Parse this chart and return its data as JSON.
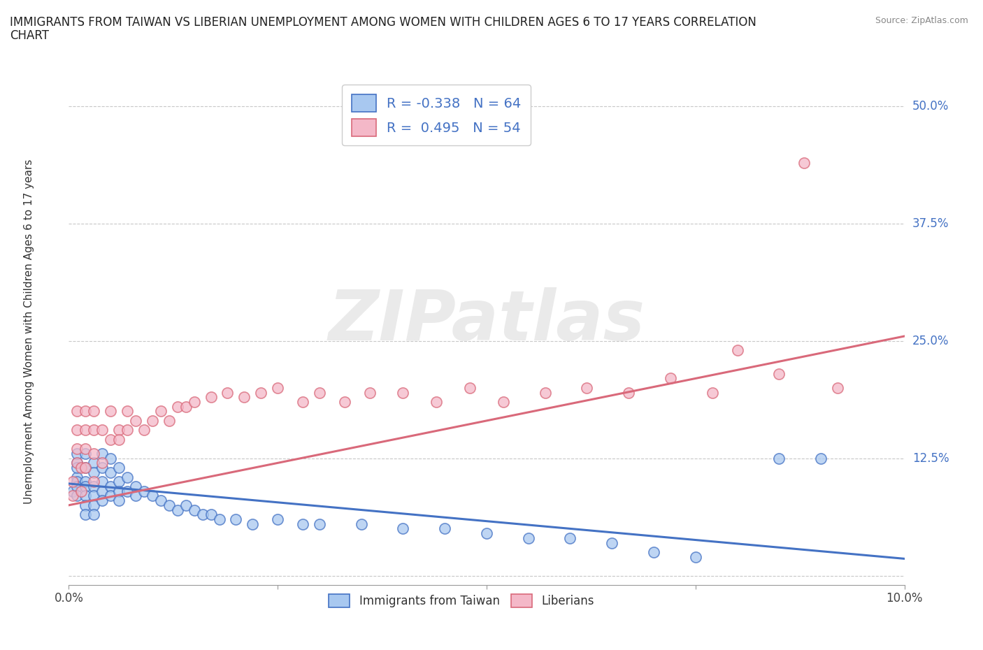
{
  "title": "IMMIGRANTS FROM TAIWAN VS LIBERIAN UNEMPLOYMENT AMONG WOMEN WITH CHILDREN AGES 6 TO 17 YEARS CORRELATION\nCHART",
  "source": "Source: ZipAtlas.com",
  "ylabel_text": "Unemployment Among Women with Children Ages 6 to 17 years",
  "taiwan_color": "#a8c8f0",
  "liberia_color": "#f4b8c8",
  "taiwan_line_color": "#4472c4",
  "liberia_line_color": "#d9697a",
  "background_color": "#ffffff",
  "grid_color": "#c8c8c8",
  "legend_r_taiwan": "-0.338",
  "legend_n_taiwan": "64",
  "legend_r_liberia": "0.495",
  "legend_n_liberia": "54",
  "watermark": "ZIPatlas",
  "xlim": [
    0.0,
    0.1
  ],
  "ylim": [
    -0.01,
    0.53
  ],
  "taiwan_scatter": [
    [
      0.0005,
      0.09
    ],
    [
      0.001,
      0.105
    ],
    [
      0.001,
      0.12
    ],
    [
      0.001,
      0.13
    ],
    [
      0.001,
      0.115
    ],
    [
      0.001,
      0.1
    ],
    [
      0.001,
      0.095
    ],
    [
      0.001,
      0.085
    ],
    [
      0.002,
      0.1
    ],
    [
      0.002,
      0.115
    ],
    [
      0.002,
      0.13
    ],
    [
      0.002,
      0.095
    ],
    [
      0.002,
      0.085
    ],
    [
      0.002,
      0.075
    ],
    [
      0.002,
      0.065
    ],
    [
      0.003,
      0.12
    ],
    [
      0.003,
      0.11
    ],
    [
      0.003,
      0.095
    ],
    [
      0.003,
      0.085
    ],
    [
      0.003,
      0.075
    ],
    [
      0.003,
      0.065
    ],
    [
      0.004,
      0.13
    ],
    [
      0.004,
      0.115
    ],
    [
      0.004,
      0.1
    ],
    [
      0.004,
      0.09
    ],
    [
      0.004,
      0.08
    ],
    [
      0.005,
      0.125
    ],
    [
      0.005,
      0.11
    ],
    [
      0.005,
      0.095
    ],
    [
      0.005,
      0.085
    ],
    [
      0.006,
      0.115
    ],
    [
      0.006,
      0.1
    ],
    [
      0.006,
      0.09
    ],
    [
      0.006,
      0.08
    ],
    [
      0.007,
      0.105
    ],
    [
      0.007,
      0.09
    ],
    [
      0.008,
      0.095
    ],
    [
      0.008,
      0.085
    ],
    [
      0.009,
      0.09
    ],
    [
      0.01,
      0.085
    ],
    [
      0.011,
      0.08
    ],
    [
      0.012,
      0.075
    ],
    [
      0.013,
      0.07
    ],
    [
      0.014,
      0.075
    ],
    [
      0.015,
      0.07
    ],
    [
      0.016,
      0.065
    ],
    [
      0.017,
      0.065
    ],
    [
      0.018,
      0.06
    ],
    [
      0.02,
      0.06
    ],
    [
      0.022,
      0.055
    ],
    [
      0.025,
      0.06
    ],
    [
      0.028,
      0.055
    ],
    [
      0.03,
      0.055
    ],
    [
      0.035,
      0.055
    ],
    [
      0.04,
      0.05
    ],
    [
      0.045,
      0.05
    ],
    [
      0.05,
      0.045
    ],
    [
      0.055,
      0.04
    ],
    [
      0.06,
      0.04
    ],
    [
      0.065,
      0.035
    ],
    [
      0.07,
      0.025
    ],
    [
      0.075,
      0.02
    ],
    [
      0.085,
      0.125
    ],
    [
      0.09,
      0.125
    ]
  ],
  "liberia_scatter": [
    [
      0.0005,
      0.085
    ],
    [
      0.0005,
      0.1
    ],
    [
      0.001,
      0.12
    ],
    [
      0.001,
      0.135
    ],
    [
      0.001,
      0.155
    ],
    [
      0.001,
      0.175
    ],
    [
      0.0015,
      0.09
    ],
    [
      0.0015,
      0.115
    ],
    [
      0.002,
      0.115
    ],
    [
      0.002,
      0.135
    ],
    [
      0.002,
      0.155
    ],
    [
      0.002,
      0.175
    ],
    [
      0.003,
      0.1
    ],
    [
      0.003,
      0.13
    ],
    [
      0.003,
      0.155
    ],
    [
      0.003,
      0.175
    ],
    [
      0.004,
      0.12
    ],
    [
      0.004,
      0.155
    ],
    [
      0.005,
      0.145
    ],
    [
      0.005,
      0.175
    ],
    [
      0.006,
      0.155
    ],
    [
      0.006,
      0.145
    ],
    [
      0.007,
      0.155
    ],
    [
      0.007,
      0.175
    ],
    [
      0.008,
      0.165
    ],
    [
      0.009,
      0.155
    ],
    [
      0.01,
      0.165
    ],
    [
      0.011,
      0.175
    ],
    [
      0.012,
      0.165
    ],
    [
      0.013,
      0.18
    ],
    [
      0.014,
      0.18
    ],
    [
      0.015,
      0.185
    ],
    [
      0.017,
      0.19
    ],
    [
      0.019,
      0.195
    ],
    [
      0.021,
      0.19
    ],
    [
      0.023,
      0.195
    ],
    [
      0.025,
      0.2
    ],
    [
      0.028,
      0.185
    ],
    [
      0.03,
      0.195
    ],
    [
      0.033,
      0.185
    ],
    [
      0.036,
      0.195
    ],
    [
      0.04,
      0.195
    ],
    [
      0.044,
      0.185
    ],
    [
      0.048,
      0.2
    ],
    [
      0.052,
      0.185
    ],
    [
      0.057,
      0.195
    ],
    [
      0.062,
      0.2
    ],
    [
      0.067,
      0.195
    ],
    [
      0.072,
      0.21
    ],
    [
      0.077,
      0.195
    ],
    [
      0.08,
      0.24
    ],
    [
      0.085,
      0.215
    ],
    [
      0.088,
      0.44
    ],
    [
      0.092,
      0.2
    ]
  ],
  "taiwan_trend": [
    0.0,
    0.1,
    0.098,
    0.018
  ],
  "liberia_trend": [
    0.0,
    0.1,
    0.075,
    0.255
  ]
}
